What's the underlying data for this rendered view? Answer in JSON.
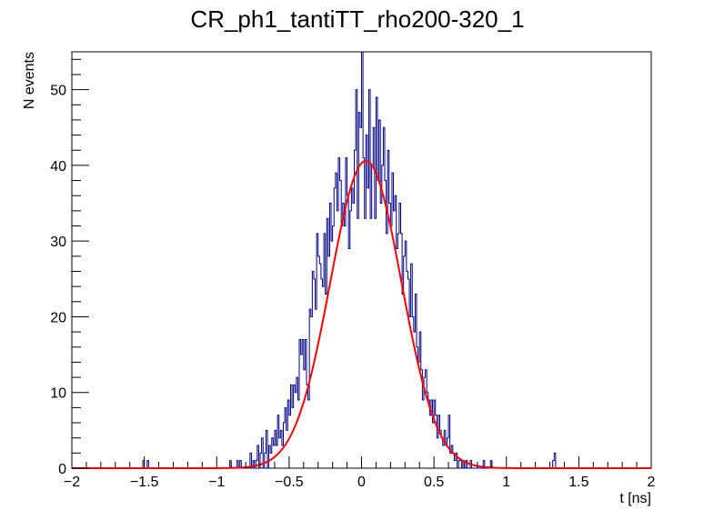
{
  "chart_data": {
    "type": "bar",
    "title": "CR_ph1_tantiTT_rho200-320_1",
    "xlabel": "t [ns]",
    "ylabel": "N events",
    "xlim": [
      -2,
      2
    ],
    "ylim": [
      0,
      55
    ],
    "x_ticks": [
      {
        "value": -2,
        "label": "−2"
      },
      {
        "value": -1.5,
        "label": "−1.5"
      },
      {
        "value": -1,
        "label": "−1"
      },
      {
        "value": -0.5,
        "label": "−0.5"
      },
      {
        "value": 0,
        "label": "0"
      },
      {
        "value": 0.5,
        "label": "0.5"
      },
      {
        "value": 1,
        "label": "1"
      },
      {
        "value": 1.5,
        "label": "1.5"
      },
      {
        "value": 2,
        "label": "2"
      }
    ],
    "y_ticks": [
      {
        "value": 0,
        "label": "0"
      },
      {
        "value": 10,
        "label": "10"
      },
      {
        "value": 20,
        "label": "20"
      },
      {
        "value": 30,
        "label": "30"
      },
      {
        "value": 40,
        "label": "40"
      },
      {
        "value": 50,
        "label": "50"
      }
    ],
    "histogram": {
      "bin_edges_range": [
        -2,
        2
      ],
      "bin_count": 400,
      "color": "#000080",
      "nonzero_bins": [
        {
          "x": -1.505,
          "y": 1
        },
        {
          "x": -1.475,
          "y": 1
        },
        {
          "x": -0.905,
          "y": 1
        },
        {
          "x": -0.855,
          "y": 1
        },
        {
          "x": -0.835,
          "y": 1
        },
        {
          "x": -0.765,
          "y": 2
        },
        {
          "x": -0.745,
          "y": 1
        },
        {
          "x": -0.725,
          "y": 1
        },
        {
          "x": -0.715,
          "y": 3
        },
        {
          "x": -0.695,
          "y": 2
        },
        {
          "x": -0.685,
          "y": 4
        },
        {
          "x": -0.665,
          "y": 2
        },
        {
          "x": -0.655,
          "y": 5
        },
        {
          "x": -0.635,
          "y": 3
        },
        {
          "x": -0.625,
          "y": 2
        },
        {
          "x": -0.615,
          "y": 4
        },
        {
          "x": -0.605,
          "y": 3
        },
        {
          "x": -0.595,
          "y": 5
        },
        {
          "x": -0.585,
          "y": 3
        },
        {
          "x": -0.575,
          "y": 7
        },
        {
          "x": -0.565,
          "y": 4
        },
        {
          "x": -0.555,
          "y": 5
        },
        {
          "x": -0.545,
          "y": 3
        },
        {
          "x": -0.535,
          "y": 6
        },
        {
          "x": -0.525,
          "y": 8
        },
        {
          "x": -0.515,
          "y": 5
        },
        {
          "x": -0.505,
          "y": 9
        },
        {
          "x": -0.495,
          "y": 7
        },
        {
          "x": -0.485,
          "y": 11
        },
        {
          "x": -0.475,
          "y": 8
        },
        {
          "x": -0.465,
          "y": 11
        },
        {
          "x": -0.455,
          "y": 10
        },
        {
          "x": -0.445,
          "y": 12
        },
        {
          "x": -0.435,
          "y": 9
        },
        {
          "x": -0.425,
          "y": 17
        },
        {
          "x": -0.415,
          "y": 15
        },
        {
          "x": -0.405,
          "y": 17
        },
        {
          "x": -0.395,
          "y": 13
        },
        {
          "x": -0.385,
          "y": 17
        },
        {
          "x": -0.375,
          "y": 11
        },
        {
          "x": -0.365,
          "y": 9
        },
        {
          "x": -0.355,
          "y": 21
        },
        {
          "x": -0.345,
          "y": 20
        },
        {
          "x": -0.335,
          "y": 26
        },
        {
          "x": -0.325,
          "y": 25
        },
        {
          "x": -0.315,
          "y": 21
        },
        {
          "x": -0.305,
          "y": 31
        },
        {
          "x": -0.295,
          "y": 28
        },
        {
          "x": -0.285,
          "y": 27
        },
        {
          "x": -0.275,
          "y": 25
        },
        {
          "x": -0.265,
          "y": 24
        },
        {
          "x": -0.255,
          "y": 31
        },
        {
          "x": -0.245,
          "y": 23
        },
        {
          "x": -0.235,
          "y": 33
        },
        {
          "x": -0.225,
          "y": 28
        },
        {
          "x": -0.215,
          "y": 35
        },
        {
          "x": -0.205,
          "y": 30
        },
        {
          "x": -0.195,
          "y": 32
        },
        {
          "x": -0.185,
          "y": 37
        },
        {
          "x": -0.175,
          "y": 39
        },
        {
          "x": -0.165,
          "y": 34
        },
        {
          "x": -0.155,
          "y": 41
        },
        {
          "x": -0.145,
          "y": 38
        },
        {
          "x": -0.135,
          "y": 32
        },
        {
          "x": -0.125,
          "y": 35
        },
        {
          "x": -0.115,
          "y": 32
        },
        {
          "x": -0.105,
          "y": 41
        },
        {
          "x": -0.095,
          "y": 36
        },
        {
          "x": -0.085,
          "y": 29
        },
        {
          "x": -0.075,
          "y": 34
        },
        {
          "x": -0.065,
          "y": 37
        },
        {
          "x": -0.055,
          "y": 35
        },
        {
          "x": -0.045,
          "y": 42
        },
        {
          "x": -0.035,
          "y": 50
        },
        {
          "x": -0.025,
          "y": 33
        },
        {
          "x": -0.015,
          "y": 47
        },
        {
          "x": -0.005,
          "y": 45
        },
        {
          "x": 0.005,
          "y": 55
        },
        {
          "x": 0.015,
          "y": 41
        },
        {
          "x": 0.025,
          "y": 33
        },
        {
          "x": 0.035,
          "y": 44
        },
        {
          "x": 0.045,
          "y": 37
        },
        {
          "x": 0.055,
          "y": 50
        },
        {
          "x": 0.065,
          "y": 33
        },
        {
          "x": 0.075,
          "y": 40
        },
        {
          "x": 0.085,
          "y": 45
        },
        {
          "x": 0.095,
          "y": 33
        },
        {
          "x": 0.105,
          "y": 49
        },
        {
          "x": 0.115,
          "y": 38
        },
        {
          "x": 0.125,
          "y": 46
        },
        {
          "x": 0.135,
          "y": 35
        },
        {
          "x": 0.145,
          "y": 40
        },
        {
          "x": 0.155,
          "y": 45
        },
        {
          "x": 0.165,
          "y": 38
        },
        {
          "x": 0.175,
          "y": 31
        },
        {
          "x": 0.185,
          "y": 42
        },
        {
          "x": 0.195,
          "y": 35
        },
        {
          "x": 0.205,
          "y": 32
        },
        {
          "x": 0.215,
          "y": 39
        },
        {
          "x": 0.225,
          "y": 34
        },
        {
          "x": 0.235,
          "y": 36
        },
        {
          "x": 0.245,
          "y": 29
        },
        {
          "x": 0.255,
          "y": 31
        },
        {
          "x": 0.265,
          "y": 35
        },
        {
          "x": 0.275,
          "y": 31
        },
        {
          "x": 0.285,
          "y": 23
        },
        {
          "x": 0.295,
          "y": 28
        },
        {
          "x": 0.305,
          "y": 30
        },
        {
          "x": 0.315,
          "y": 26
        },
        {
          "x": 0.325,
          "y": 25
        },
        {
          "x": 0.335,
          "y": 20
        },
        {
          "x": 0.345,
          "y": 27
        },
        {
          "x": 0.355,
          "y": 20
        },
        {
          "x": 0.365,
          "y": 18
        },
        {
          "x": 0.375,
          "y": 23
        },
        {
          "x": 0.385,
          "y": 16
        },
        {
          "x": 0.395,
          "y": 14
        },
        {
          "x": 0.405,
          "y": 18
        },
        {
          "x": 0.415,
          "y": 13
        },
        {
          "x": 0.425,
          "y": 9
        },
        {
          "x": 0.435,
          "y": 12
        },
        {
          "x": 0.445,
          "y": 13
        },
        {
          "x": 0.455,
          "y": 10
        },
        {
          "x": 0.465,
          "y": 9
        },
        {
          "x": 0.475,
          "y": 7
        },
        {
          "x": 0.485,
          "y": 9
        },
        {
          "x": 0.495,
          "y": 6
        },
        {
          "x": 0.505,
          "y": 9
        },
        {
          "x": 0.515,
          "y": 7
        },
        {
          "x": 0.525,
          "y": 4
        },
        {
          "x": 0.535,
          "y": 7
        },
        {
          "x": 0.545,
          "y": 5
        },
        {
          "x": 0.555,
          "y": 4
        },
        {
          "x": 0.565,
          "y": 3
        },
        {
          "x": 0.575,
          "y": 5
        },
        {
          "x": 0.585,
          "y": 3
        },
        {
          "x": 0.595,
          "y": 4
        },
        {
          "x": 0.605,
          "y": 7
        },
        {
          "x": 0.615,
          "y": 2
        },
        {
          "x": 0.625,
          "y": 3
        },
        {
          "x": 0.635,
          "y": 2
        },
        {
          "x": 0.645,
          "y": 1
        },
        {
          "x": 0.655,
          "y": 2
        },
        {
          "x": 0.675,
          "y": 1
        },
        {
          "x": 0.685,
          "y": 1
        },
        {
          "x": 0.705,
          "y": 1
        },
        {
          "x": 0.725,
          "y": 1
        },
        {
          "x": 0.755,
          "y": 1
        },
        {
          "x": 0.845,
          "y": 1
        },
        {
          "x": 0.895,
          "y": 1
        },
        {
          "x": 1.325,
          "y": 1
        },
        {
          "x": 1.335,
          "y": 2
        }
      ]
    },
    "fit": {
      "type": "gaussian",
      "color": "#ff0000",
      "amplitude": 40.6,
      "mean": 0.03,
      "sigma": 0.245
    },
    "grid": false,
    "legend": "none"
  }
}
